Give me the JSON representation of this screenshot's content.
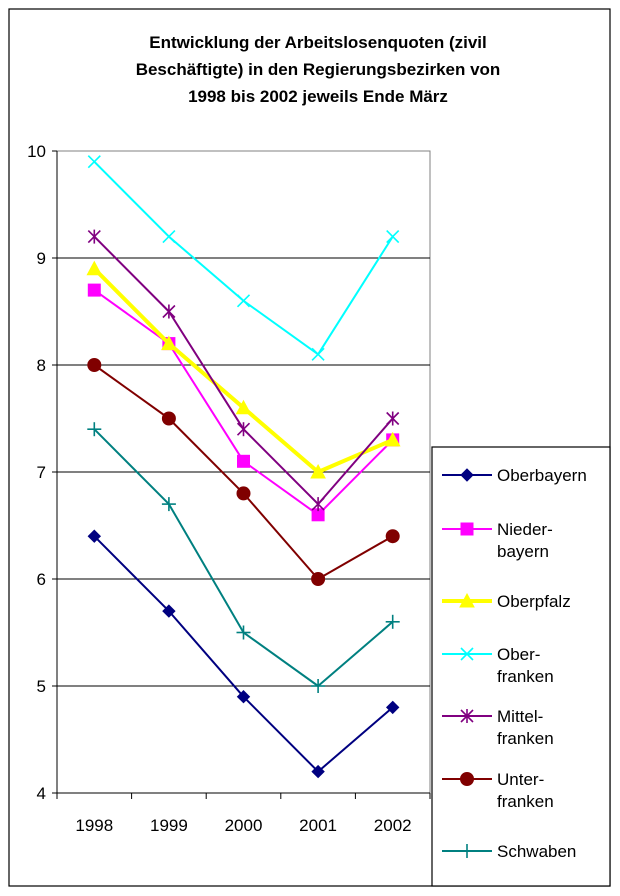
{
  "chart_data": {
    "type": "line",
    "title_lines": [
      "Entwicklung der Arbeitslosenquoten (zivil",
      "Beschäftigte) in den Regierungsbezirken von",
      "1998 bis 2002 jeweils Ende März"
    ],
    "xlabel": "",
    "ylabel": "",
    "categories": [
      "1998",
      "1999",
      "2000",
      "2001",
      "2002"
    ],
    "ylim": [
      4,
      10
    ],
    "yticks": [
      "4",
      "5",
      "6",
      "7",
      "8",
      "9",
      "10"
    ],
    "grid": true,
    "legend_position": "right",
    "series": [
      {
        "name": "Oberbayern",
        "label_lines": [
          "Oberbayern"
        ],
        "color": "#000080",
        "marker": "diamond",
        "values": [
          6.4,
          5.7,
          4.9,
          4.2,
          4.8
        ]
      },
      {
        "name": "Nieder-bayern",
        "label_lines": [
          "Nieder-",
          "bayern"
        ],
        "color": "#FF00FF",
        "marker": "square",
        "values": [
          8.7,
          8.2,
          7.1,
          6.6,
          7.3
        ]
      },
      {
        "name": "Oberpfalz",
        "label_lines": [
          "Oberpfalz"
        ],
        "color": "#FFFF00",
        "marker": "triangle",
        "values": [
          8.9,
          8.2,
          7.6,
          7.0,
          7.3
        ]
      },
      {
        "name": "Ober-franken",
        "label_lines": [
          "Ober-",
          "franken"
        ],
        "color": "#00FFFF",
        "marker": "x",
        "values": [
          9.9,
          9.2,
          8.6,
          8.1,
          9.2
        ]
      },
      {
        "name": "Mittel-franken",
        "label_lines": [
          "Mittel-",
          "franken"
        ],
        "color": "#800080",
        "marker": "star",
        "values": [
          9.2,
          8.5,
          7.4,
          6.7,
          7.5
        ]
      },
      {
        "name": "Unter-franken",
        "label_lines": [
          "Unter-",
          "franken"
        ],
        "color": "#800000",
        "marker": "circle",
        "values": [
          8.0,
          7.5,
          6.8,
          6.0,
          6.4
        ]
      },
      {
        "name": "Schwaben",
        "label_lines": [
          "Schwaben"
        ],
        "color": "#008080",
        "marker": "plus",
        "values": [
          7.4,
          6.7,
          5.5,
          5.0,
          5.6
        ]
      }
    ]
  }
}
